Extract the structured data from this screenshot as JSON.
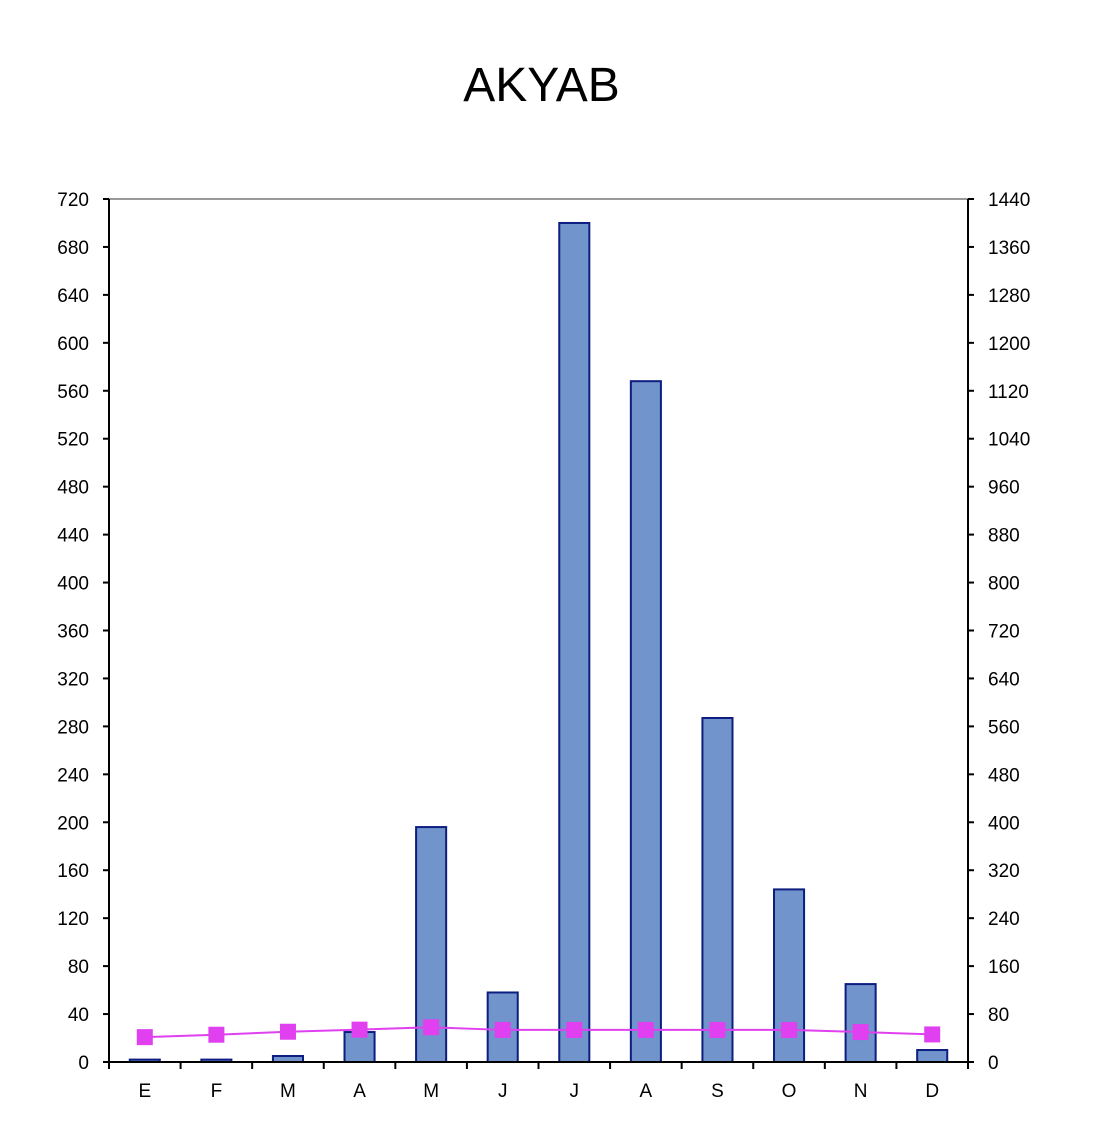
{
  "chart_data": {
    "type": "bar",
    "title": "AKYAB",
    "categories": [
      "E",
      "F",
      "M",
      "A",
      "M",
      "J",
      "J",
      "A",
      "S",
      "O",
      "N",
      "D"
    ],
    "series": [
      {
        "axis": "left",
        "type": "bar",
        "values": [
          2,
          2,
          5,
          25,
          196,
          58,
          700,
          568,
          287,
          144,
          65,
          10
        ],
        "color": "#7094CB",
        "stroke": "#0D1D80"
      },
      {
        "axis": "right",
        "type": "line",
        "values": [
          41.5,
          45.5,
          50.5,
          54,
          58,
          53.5,
          53.5,
          53.5,
          53.5,
          53.5,
          50,
          46
        ],
        "color": "#E040F0"
      }
    ],
    "y_left": {
      "min": 0,
      "max": 720,
      "step": 40
    },
    "y_right": {
      "min": 0,
      "max": 1440,
      "step": 80
    },
    "grid": false,
    "legend": "none"
  }
}
